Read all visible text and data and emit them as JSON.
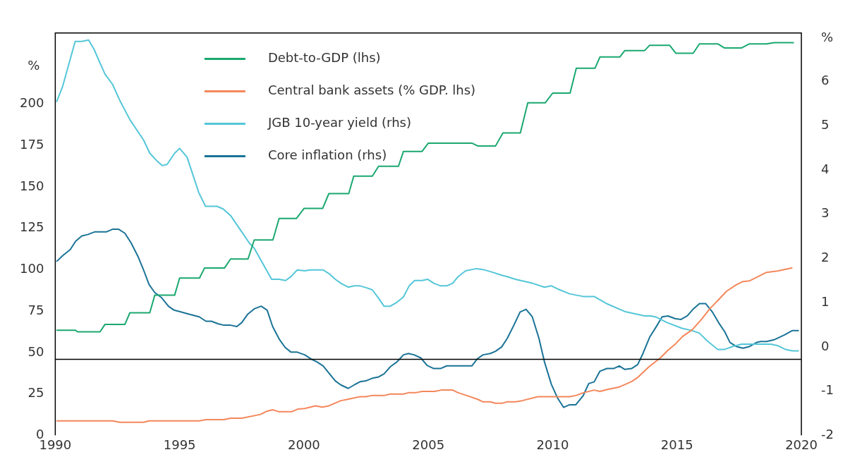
{
  "chart_data": {
    "type": "line",
    "ylabel": "%",
    "y2label": "%",
    "xlim": [
      1990,
      2020
    ],
    "xticks": [
      1990,
      1995,
      2000,
      2005,
      2010,
      2015,
      2020
    ],
    "ylim": [
      0,
      243
    ],
    "yticks": [
      0,
      25,
      50,
      75,
      100,
      125,
      150,
      175,
      200
    ],
    "y2lim": [
      -2,
      7.1
    ],
    "y2ticks": [
      -2,
      -1,
      0,
      1,
      2,
      3,
      4,
      5,
      6
    ],
    "grid": false,
    "legend": "top left",
    "marker": "none",
    "line_style": "solid",
    "ref_lines": [
      {
        "axis": "y2",
        "value": -0.28,
        "color": "#000000"
      }
    ],
    "series": [
      {
        "name": "Debt-to-GDP (lhs)",
        "color": "#1aa86f",
        "x": [
          1990.05,
          1990.8,
          1990.9,
          1991.8,
          1992.0,
          1992.8,
          1993.0,
          1993.8,
          1994.0,
          1994.8,
          1995.0,
          1995.8,
          1996.0,
          1996.8,
          1997.05,
          1997.75,
          1998.0,
          1998.75,
          1999.0,
          1999.7,
          2000.0,
          2000.75,
          2001.0,
          2001.8,
          2002.0,
          2002.75,
          2003.0,
          2003.8,
          2004.0,
          2004.75,
          2005.0,
          2006.75,
          2007.0,
          2007.7,
          2008.0,
          2008.7,
          2009.0,
          2009.7,
          2010.0,
          2010.7,
          2010.95,
          2011.7,
          2011.9,
          2012.7,
          2012.9,
          2013.7,
          2013.9,
          2014.7,
          2014.95,
          2015.65,
          2015.9,
          2016.65,
          2016.9,
          2017.6,
          2017.9,
          2018.6,
          2018.9,
          2019.7
        ],
        "values": [
          63.5,
          63.5,
          62.5,
          62.5,
          67,
          67,
          74,
          74,
          84.6,
          84.6,
          95,
          95,
          101,
          101,
          106.5,
          106.5,
          118,
          118,
          131,
          131,
          137,
          137,
          146,
          146,
          156.5,
          156.5,
          162.5,
          162.5,
          171.5,
          171.5,
          176.5,
          176.5,
          174.7,
          174.7,
          182.6,
          182.6,
          200.8,
          200.8,
          206.7,
          206.7,
          221.7,
          221.7,
          228.5,
          228.5,
          232.4,
          232.4,
          235.6,
          235.6,
          230.8,
          230.8,
          236.4,
          236.4,
          234,
          234,
          236.4,
          236.4,
          237.2,
          237.2
        ]
      },
      {
        "name": "Central bank assets (% GDP. lhs)",
        "color": "#f4875b",
        "x": [
          1990.05,
          1992.3,
          1992.6,
          1993.55,
          1993.77,
          1995.79,
          1996.06,
          1996.78,
          1997.05,
          1997.5,
          1998.25,
          1998.52,
          1998.74,
          1999.0,
          1999.5,
          1999.75,
          2000.03,
          2000.46,
          2000.74,
          2001.0,
          2001.48,
          2001.75,
          2002.25,
          2002.48,
          2002.75,
          2003.25,
          2003.47,
          2004.0,
          2004.2,
          2004.48,
          2004.75,
          2005.25,
          2005.52,
          2005.98,
          2006.2,
          2006.53,
          2006.99,
          2007.2,
          2007.49,
          2007.7,
          2007.98,
          2008.17,
          2008.5,
          2008.77,
          2009.4,
          2010.5,
          2010.68,
          2010.95,
          2011.23,
          2011.67,
          2011.9,
          2012.2,
          2012.68,
          2013.17,
          2013.44,
          2013.85,
          2014.32,
          2014.64,
          2014.92,
          2015.22,
          2015.6,
          2015.96,
          2016.31,
          2016.69,
          2016.99,
          2017.38,
          2017.65,
          2017.92,
          2018.6,
          2019.04,
          2019.64
        ],
        "values": [
          8.7,
          8.7,
          7.9,
          7.9,
          8.7,
          8.7,
          9.5,
          9.5,
          10.3,
          10.3,
          12.6,
          14.6,
          15.4,
          14.2,
          14.2,
          15.8,
          16.2,
          17.8,
          17,
          17.8,
          20.9,
          21.7,
          23.3,
          23.3,
          24.1,
          24.1,
          24.9,
          24.9,
          25.7,
          25.7,
          26.5,
          26.5,
          27.3,
          27.3,
          25.7,
          24.1,
          21.7,
          20.2,
          20.2,
          19.4,
          19.4,
          20.2,
          20.2,
          20.9,
          23.3,
          23.3,
          23.3,
          24.1,
          25.7,
          27.3,
          26.5,
          27.7,
          29.2,
          32.4,
          35.2,
          41.1,
          46.6,
          51.4,
          54.9,
          59.7,
          63.6,
          69.6,
          76.3,
          82.2,
          87,
          90.9,
          92.9,
          93.3,
          98.4,
          99.2,
          101.2
        ]
      },
      {
        "name": "JGB 10-year yield (rhs)",
        "color": "#54c6d8",
        "axis": "y2",
        "x": [
          1990.05,
          1990.3,
          1990.8,
          1991.06,
          1991.34,
          1991.56,
          1991.8,
          1992.0,
          1992.3,
          1992.6,
          1993.0,
          1993.55,
          1993.8,
          1994.1,
          1994.3,
          1994.5,
          1994.8,
          1995.0,
          1995.3,
          1995.77,
          1996.04,
          1996.5,
          1996.75,
          1997.05,
          1997.5,
          1997.8,
          1998.0,
          1998.7,
          1999.0,
          1999.26,
          1999.48,
          1999.73,
          2000.03,
          2000.25,
          2000.77,
          2001.0,
          2001.26,
          2001.48,
          2001.78,
          2002.02,
          2002.25,
          2002.5,
          2002.75,
          2003.0,
          2003.22,
          2003.47,
          2003.74,
          2004.0,
          2004.23,
          2004.45,
          2004.75,
          2004.97,
          2005.22,
          2005.49,
          2005.74,
          2005.98,
          2006.2,
          2006.5,
          2006.94,
          2007.2,
          2007.57,
          2007.95,
          2008.17,
          2008.5,
          2009.18,
          2009.67,
          2009.95,
          2010.2,
          2010.68,
          2011.23,
          2011.67,
          2012.2,
          2012.9,
          2013.7,
          2013.96,
          2014.18,
          2014.6,
          2015.2,
          2015.6,
          2015.9,
          2016.23,
          2016.64,
          2016.9,
          2017.24,
          2017.6,
          2018.77,
          2019.04,
          2019.37,
          2019.64,
          2019.9
        ],
        "values": [
          5.54,
          5.9,
          6.91,
          6.91,
          6.94,
          6.73,
          6.42,
          6.17,
          5.94,
          5.57,
          5.14,
          4.68,
          4.38,
          4.2,
          4.1,
          4.13,
          4.38,
          4.49,
          4.29,
          3.49,
          3.18,
          3.18,
          3.12,
          2.97,
          2.6,
          2.35,
          2.23,
          1.53,
          1.53,
          1.5,
          1.59,
          1.74,
          1.72,
          1.74,
          1.74,
          1.66,
          1.53,
          1.44,
          1.35,
          1.38,
          1.38,
          1.34,
          1.29,
          1.1,
          0.92,
          0.92,
          1.01,
          1.13,
          1.38,
          1.5,
          1.5,
          1.53,
          1.44,
          1.38,
          1.38,
          1.44,
          1.59,
          1.72,
          1.77,
          1.75,
          1.69,
          1.62,
          1.59,
          1.53,
          1.44,
          1.35,
          1.38,
          1.31,
          1.2,
          1.14,
          1.14,
          0.97,
          0.8,
          0.7,
          0.7,
          0.67,
          0.55,
          0.42,
          0.37,
          0.31,
          0.13,
          -0.06,
          -0.06,
          0.01,
          0.06,
          0.06,
          0.03,
          -0.06,
          -0.09,
          -0.09
        ]
      },
      {
        "name": "Core inflation (rhs)",
        "color": "#1a7396",
        "axis": "y2",
        "x": [
          1990.05,
          1990.33,
          1990.6,
          1990.82,
          1991.07,
          1991.3,
          1991.58,
          1992.05,
          1992.3,
          1992.55,
          1992.8,
          1993.05,
          1993.33,
          1993.55,
          1993.77,
          1994.0,
          1994.28,
          1994.55,
          1994.78,
          1995.0,
          1995.38,
          1995.79,
          1996.06,
          1996.28,
          1996.56,
          1996.78,
          1997.05,
          1997.3,
          1997.5,
          1997.74,
          1998.0,
          1998.28,
          1998.52,
          1998.74,
          1999.0,
          1999.24,
          1999.48,
          1999.73,
          2000.03,
          2000.3,
          2000.52,
          2000.77,
          2001.0,
          2001.26,
          2001.48,
          2001.78,
          2002.02,
          2002.25,
          2002.48,
          2002.75,
          2003.0,
          2003.22,
          2003.47,
          2003.74,
          2004.0,
          2004.2,
          2004.43,
          2004.7,
          2004.95,
          2005.22,
          2005.49,
          2005.74,
          2006.75,
          2006.97,
          2007.2,
          2007.49,
          2007.7,
          2007.95,
          2008.17,
          2008.44,
          2008.69,
          2008.93,
          2009.18,
          2009.45,
          2009.67,
          2009.95,
          2010.2,
          2010.44,
          2010.68,
          2010.93,
          2011.23,
          2011.45,
          2011.67,
          2011.9,
          2012.18,
          2012.45,
          2012.68,
          2012.9,
          2013.17,
          2013.42,
          2013.63,
          2013.9,
          2014.18,
          2014.4,
          2014.64,
          2014.92,
          2015.16,
          2015.41,
          2015.66,
          2015.9,
          2016.15,
          2016.42,
          2016.67,
          2016.92,
          2017.13,
          2017.38,
          2017.65,
          2017.92,
          2018.2,
          2018.36,
          2018.6,
          2018.9,
          2019.32,
          2019.64,
          2019.9
        ],
        "values": [
          1.93,
          2.08,
          2.2,
          2.39,
          2.51,
          2.54,
          2.6,
          2.6,
          2.66,
          2.66,
          2.57,
          2.35,
          2.04,
          1.74,
          1.41,
          1.23,
          1.11,
          0.92,
          0.83,
          0.8,
          0.74,
          0.68,
          0.58,
          0.58,
          0.52,
          0.49,
          0.49,
          0.46,
          0.55,
          0.74,
          0.86,
          0.92,
          0.83,
          0.46,
          0.18,
          -0.01,
          -0.12,
          -0.12,
          -0.18,
          -0.28,
          -0.34,
          -0.43,
          -0.59,
          -0.77,
          -0.86,
          -0.94,
          -0.86,
          -0.79,
          -0.77,
          -0.71,
          -0.68,
          -0.61,
          -0.45,
          -0.34,
          -0.18,
          -0.15,
          -0.18,
          -0.25,
          -0.42,
          -0.49,
          -0.49,
          -0.43,
          -0.43,
          -0.27,
          -0.18,
          -0.15,
          -0.1,
          0,
          0.19,
          0.49,
          0.79,
          0.85,
          0.68,
          0.19,
          -0.34,
          -0.85,
          -1.16,
          -1.37,
          -1.31,
          -1.31,
          -1.1,
          -0.83,
          -0.79,
          -0.55,
          -0.49,
          -0.49,
          -0.43,
          -0.51,
          -0.49,
          -0.4,
          -0.15,
          0.22,
          0.47,
          0.68,
          0.7,
          0.64,
          0.62,
          0.7,
          0.86,
          0.98,
          0.98,
          0.79,
          0.55,
          0.34,
          0.1,
          0.01,
          -0.03,
          0.01,
          0.1,
          0.12,
          0.12,
          0.16,
          0.27,
          0.37,
          0.37
        ]
      }
    ]
  }
}
